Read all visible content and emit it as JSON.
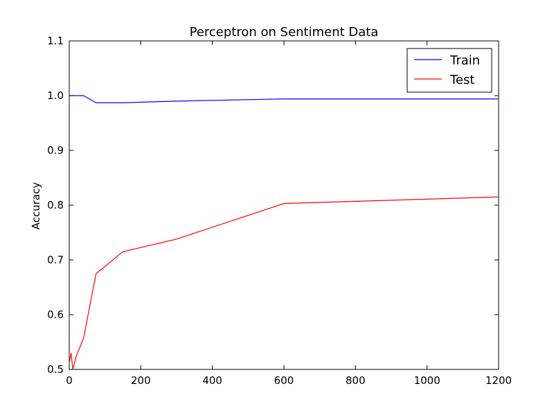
{
  "chart_data": {
    "type": "line",
    "title": "Perceptron on Sentiment Data",
    "xlabel": "",
    "ylabel": "Accuracy",
    "xlim": [
      0,
      1200
    ],
    "ylim": [
      0.5,
      1.1
    ],
    "xticks": [
      0,
      200,
      400,
      600,
      800,
      1000,
      1200
    ],
    "yticks": [
      0.5,
      0.6,
      0.7,
      0.8,
      0.9,
      1.0,
      1.1
    ],
    "xtick_labels": [
      "0",
      "200",
      "400",
      "600",
      "800",
      "1000",
      "1200"
    ],
    "ytick_labels": [
      "0.5",
      "0.6",
      "0.7",
      "0.8",
      "0.9",
      "1.0",
      "1.1"
    ],
    "grid": false,
    "legend": "top-right",
    "series": [
      {
        "name": "Train",
        "color": "#0000ff",
        "x": [
          1,
          5,
          10,
          20,
          40,
          75,
          150,
          300,
          600,
          1200
        ],
        "y": [
          1.0,
          1.0,
          1.0,
          1.0,
          1.0,
          0.987,
          0.987,
          0.99,
          0.994,
          0.994
        ]
      },
      {
        "name": "Test",
        "color": "#ff0000",
        "x": [
          1,
          5,
          10,
          20,
          40,
          75,
          150,
          300,
          600,
          1200
        ],
        "y": [
          0.515,
          0.53,
          0.5,
          0.525,
          0.557,
          0.675,
          0.715,
          0.738,
          0.803,
          0.815
        ]
      }
    ]
  }
}
